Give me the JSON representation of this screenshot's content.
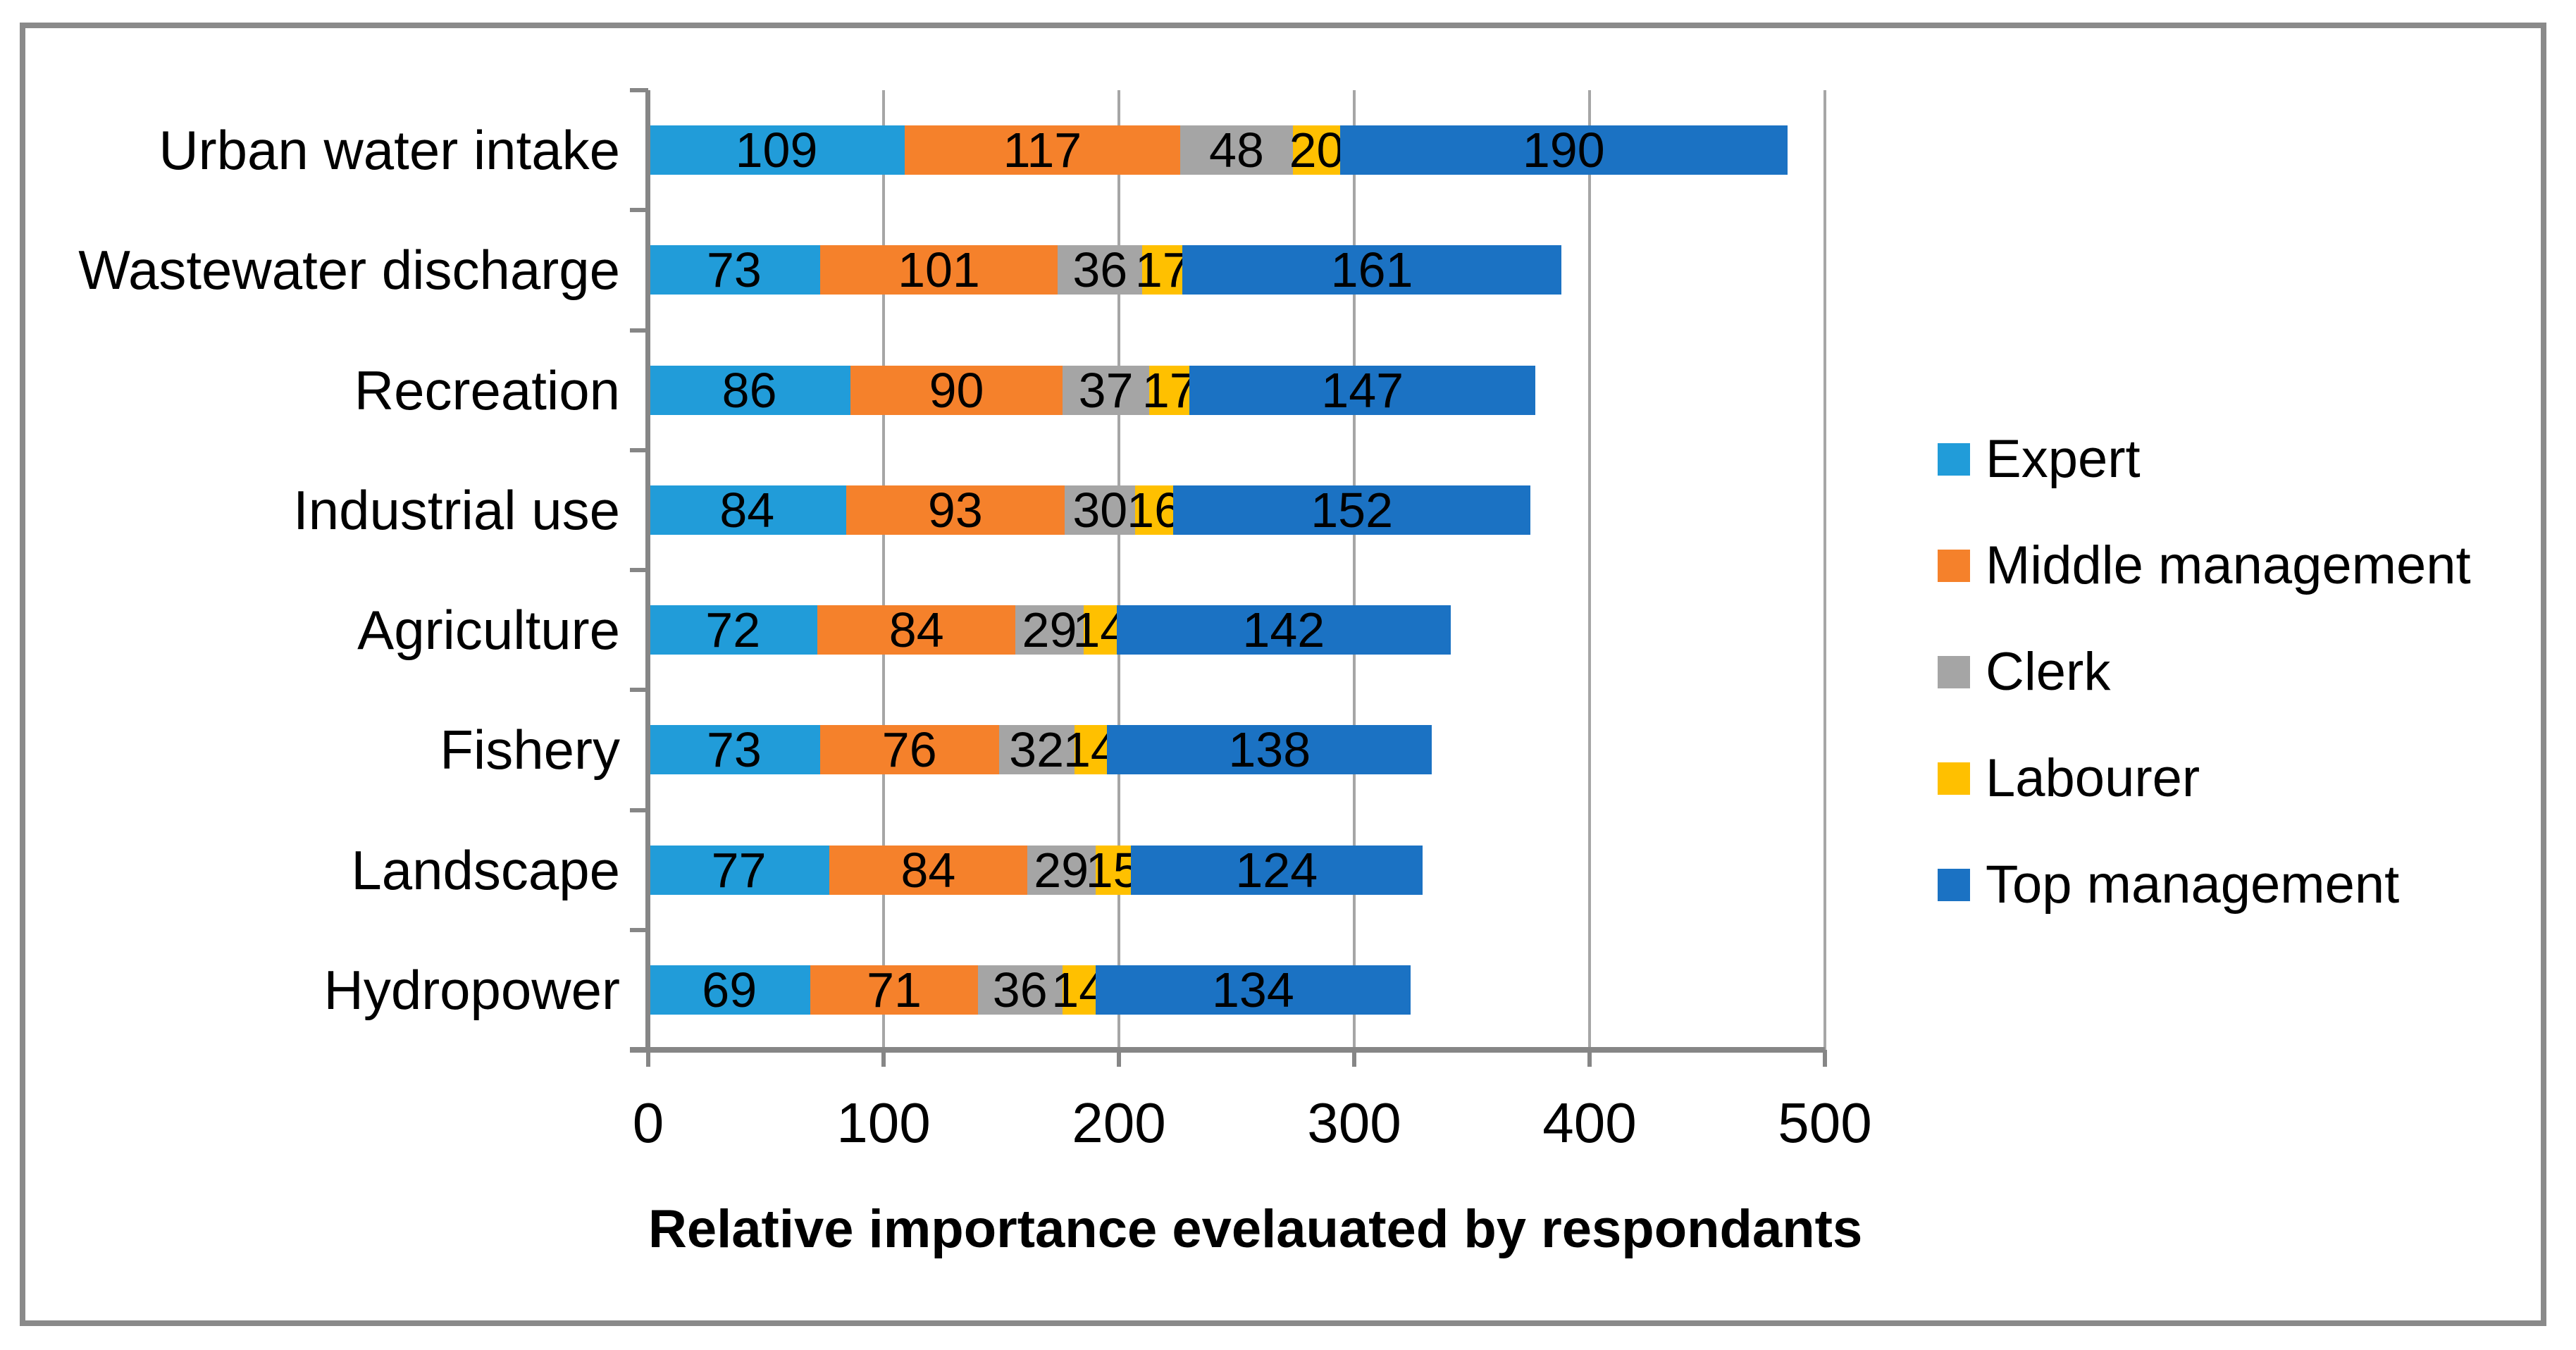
{
  "chart_data": {
    "type": "bar",
    "orientation": "horizontal",
    "stacked": true,
    "title": "",
    "xlabel": "Relative importance evelauated by respondants",
    "ylabel": "",
    "xlim": [
      0,
      500
    ],
    "xticks": [
      0,
      100,
      200,
      300,
      400,
      500
    ],
    "grid": true,
    "data_labels": true,
    "data_label_color": "#000000",
    "legend_position": "right",
    "categories": [
      "Urban water intake",
      "Wastewater discharge",
      "Recreation",
      "Industrial use",
      "Agriculture",
      "Fishery",
      "Landscape",
      "Hydropower"
    ],
    "series": [
      {
        "name": "Expert",
        "color": "#219CD9",
        "values": [
          109,
          73,
          86,
          84,
          72,
          73,
          77,
          69
        ]
      },
      {
        "name": "Middle management",
        "color": "#F5812B",
        "values": [
          117,
          101,
          90,
          93,
          84,
          76,
          84,
          71
        ]
      },
      {
        "name": "Clerk",
        "color": "#A5A5A5",
        "values": [
          48,
          36,
          37,
          30,
          29,
          32,
          29,
          36
        ]
      },
      {
        "name": "Labourer",
        "color": "#FFC000",
        "values": [
          20,
          17,
          17,
          16,
          14,
          14,
          15,
          14
        ]
      },
      {
        "name": "Top management",
        "color": "#1B72C3",
        "values": [
          190,
          161,
          147,
          152,
          142,
          138,
          124,
          134
        ]
      }
    ],
    "colors": {
      "axis": "#868686",
      "gridline": "#A6A6A6",
      "frame_border": "#8A8A8A",
      "background": "#FFFFFF"
    }
  }
}
